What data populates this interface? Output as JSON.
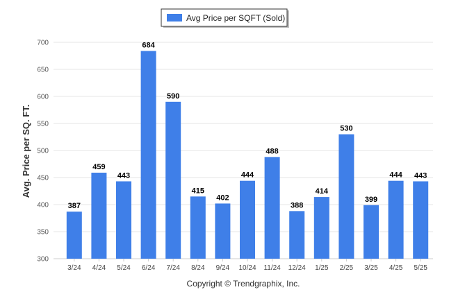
{
  "chart_data": {
    "type": "bar",
    "categories": [
      "3/24",
      "4/24",
      "5/24",
      "6/24",
      "7/24",
      "8/24",
      "9/24",
      "10/24",
      "11/24",
      "12/24",
      "1/25",
      "2/25",
      "3/25",
      "4/25",
      "5/25"
    ],
    "series": [
      {
        "name": "Avg Price per SQFT (Sold)",
        "values": [
          387,
          459,
          443,
          684,
          590,
          415,
          402,
          444,
          488,
          388,
          414,
          530,
          399,
          444,
          443
        ],
        "color": "#3f7fe8"
      }
    ],
    "title": "",
    "xlabel": "",
    "ylabel": "Avg. Price per SQ. FT.",
    "ylim": [
      300,
      700
    ],
    "yticks": [
      300,
      350,
      400,
      450,
      500,
      550,
      600,
      650,
      700
    ],
    "grid": true,
    "legend_position": "top-center",
    "data_labels": true
  },
  "footer": {
    "copyright": "Copyright © Trendgraphix, Inc."
  }
}
